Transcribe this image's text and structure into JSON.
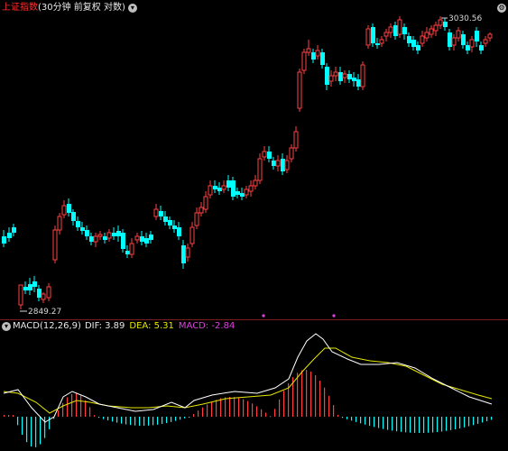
{
  "header": {
    "index_name": "上证指数",
    "params": "(30分钟 前复权 对数)",
    "collapse_icon": "chevron-down-icon"
  },
  "annotations": {
    "low_value": "2849.27",
    "high_value": "3030.56"
  },
  "indicator": {
    "name": "MACD(12,26,9)",
    "dif_label": "DIF: 3.89",
    "dea_label": "DEA: 5.31",
    "macd_label": "MACD: -2.84"
  },
  "colors": {
    "up": "#ff4040",
    "down": "#00ffff",
    "dif": "#ffffff",
    "dea": "#e6e600",
    "macd_label": "#e040e0",
    "title": "#ff3030"
  }
}
